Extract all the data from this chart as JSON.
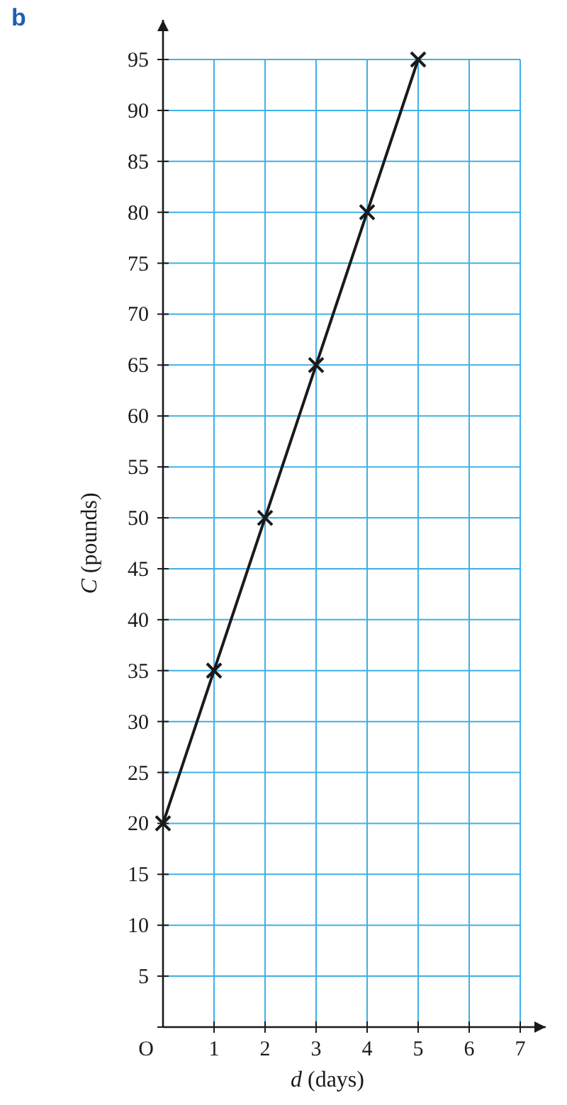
{
  "chart_data": {
    "type": "line",
    "xlabel": "d (days)",
    "ylabel": "C (pounds)",
    "annotations": [
      "b"
    ],
    "x": [
      0,
      1,
      2,
      3,
      4,
      5
    ],
    "series": [
      {
        "color": "#1a1a1a",
        "values": [
          20,
          35,
          50,
          65,
          80,
          95
        ]
      }
    ],
    "xlim": [
      0,
      7
    ],
    "xticks": [
      {
        "value": 0,
        "label": "O"
      },
      1,
      2,
      3,
      4,
      5,
      6,
      7
    ],
    "ylim": [
      0,
      95
    ],
    "yticks": [
      {
        "value": 0,
        "label": null
      },
      5,
      10,
      15,
      20,
      25,
      30,
      35,
      40,
      45,
      50,
      55,
      60,
      65,
      70,
      75,
      80,
      85,
      90,
      95
    ],
    "grid": true,
    "marker": "cross",
    "line_style": "solid"
  }
}
